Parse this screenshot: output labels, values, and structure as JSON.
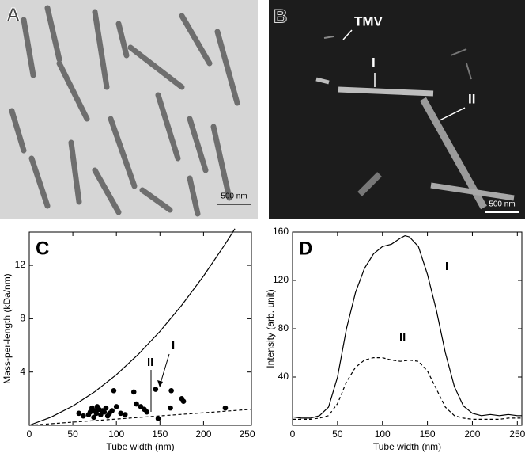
{
  "panels": [
    {
      "label": "A",
      "scale_bar": "500 nm"
    },
    {
      "label": "B",
      "scale_bar": "500 nm",
      "annotations": [
        "TMV",
        "I",
        "II"
      ]
    }
  ],
  "chart_data": [
    {
      "type": "scatter",
      "label": "C",
      "x_label": "Tube width (nm)",
      "y_label": "Mass-per-length (kDa/nm)",
      "xlim": [
        0,
        255
      ],
      "ylim": [
        0,
        14.5
      ],
      "xticks": [
        0,
        50,
        100,
        150,
        200,
        250
      ],
      "yticks": [
        4,
        8,
        12
      ],
      "grid": false,
      "annotations": [
        "II",
        "I"
      ],
      "series": [
        {
          "mode": "markers",
          "color": "#000000",
          "x": [
            57,
            62,
            68,
            70,
            72,
            74,
            75,
            77,
            78,
            80,
            82,
            84,
            86,
            88,
            90,
            92,
            95,
            97,
            100,
            105,
            110,
            120,
            123,
            128,
            132,
            135,
            145,
            148,
            162,
            163,
            175,
            177,
            225
          ],
          "values": [
            0.9,
            0.7,
            0.8,
            1.0,
            1.3,
            0.6,
            1.1,
            0.9,
            1.4,
            1.2,
            0.8,
            1.1,
            1.0,
            1.3,
            0.7,
            0.9,
            1.1,
            2.6,
            1.4,
            0.9,
            0.8,
            2.5,
            1.6,
            1.4,
            1.2,
            1.0,
            2.7,
            0.5,
            1.3,
            2.6,
            2.0,
            1.8,
            1.3
          ]
        },
        {
          "mode": "lines",
          "linestyle": "solid",
          "color": "#000000",
          "x": [
            0,
            25,
            50,
            75,
            100,
            125,
            150,
            175,
            200,
            225,
            236
          ],
          "values": [
            0,
            0.61,
            1.45,
            2.51,
            3.8,
            5.31,
            7.05,
            9.01,
            11.2,
            13.6,
            14.75
          ]
        },
        {
          "mode": "lines",
          "linestyle": "dashed",
          "color": "#000000",
          "x": [
            0,
            50,
            100,
            150,
            200,
            255
          ],
          "values": [
            0,
            0.24,
            0.47,
            0.71,
            0.94,
            1.2
          ]
        }
      ]
    },
    {
      "type": "line",
      "label": "D",
      "x_label": "Tube width (nm)",
      "y_label": "Intensity (arb. unit)",
      "xlim": [
        0,
        255
      ],
      "ylim": [
        0,
        160
      ],
      "xticks": [
        0,
        50,
        100,
        150,
        200,
        250
      ],
      "yticks": [
        40,
        80,
        120,
        160
      ],
      "grid": false,
      "annotations": [
        "I",
        "II"
      ],
      "series": [
        {
          "mode": "lines",
          "linestyle": "solid",
          "color": "#000000",
          "x": [
            0,
            10,
            20,
            30,
            40,
            50,
            60,
            70,
            80,
            90,
            100,
            110,
            120,
            125,
            130,
            140,
            150,
            160,
            170,
            180,
            190,
            200,
            210,
            220,
            230,
            240,
            250,
            255
          ],
          "values": [
            7,
            6,
            6,
            8,
            15,
            40,
            80,
            110,
            130,
            142,
            148,
            150,
            155,
            157,
            156,
            148,
            125,
            95,
            60,
            32,
            16,
            10,
            8,
            9,
            8,
            9,
            8,
            8
          ]
        },
        {
          "mode": "lines",
          "linestyle": "dashed",
          "color": "#000000",
          "x": [
            0,
            10,
            20,
            30,
            40,
            50,
            60,
            70,
            80,
            90,
            100,
            110,
            120,
            130,
            140,
            150,
            160,
            170,
            180,
            190,
            200,
            210,
            220,
            230,
            240,
            250,
            255
          ],
          "values": [
            5,
            5,
            5,
            6,
            8,
            18,
            36,
            48,
            54,
            56,
            56,
            54,
            53,
            54,
            53,
            45,
            30,
            15,
            8,
            6,
            5,
            5,
            5,
            5,
            6,
            6,
            6
          ]
        }
      ]
    }
  ]
}
